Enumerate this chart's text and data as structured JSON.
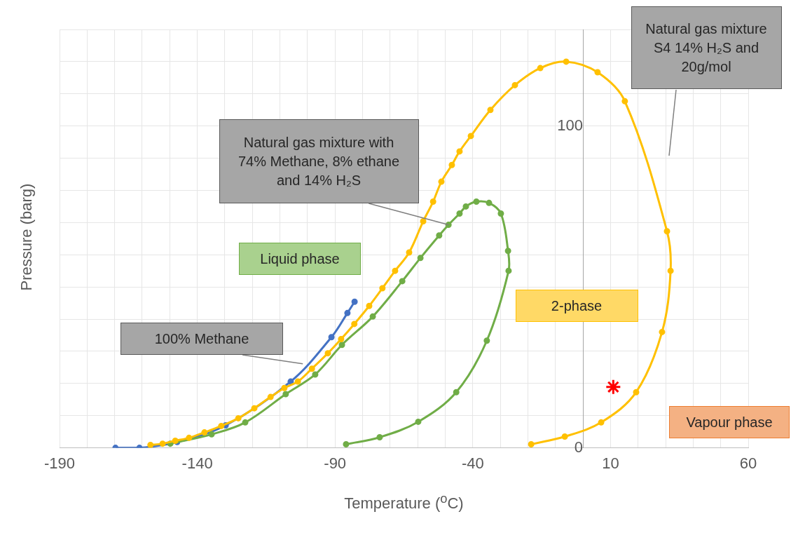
{
  "chart_data": {
    "type": "line",
    "xlabel": "Temperature ($^{o}$C)",
    "ylabel": "Pressure (barg)",
    "xlim": [
      -190,
      60
    ],
    "ylim": [
      0,
      130
    ],
    "xticks": [
      -190,
      {
        "value": -180,
        "label": null
      },
      {
        "value": -170,
        "label": null
      },
      {
        "value": -160,
        "label": null
      },
      {
        "value": -150,
        "label": null
      },
      -140,
      {
        "value": -130,
        "label": null
      },
      {
        "value": -120,
        "label": null
      },
      {
        "value": -110,
        "label": null
      },
      {
        "value": -100,
        "label": null
      },
      -90,
      {
        "value": -80,
        "label": null
      },
      {
        "value": -70,
        "label": null
      },
      {
        "value": -60,
        "label": null
      },
      {
        "value": -50,
        "label": null
      },
      -40,
      {
        "value": -30,
        "label": null
      },
      {
        "value": -20,
        "label": null
      },
      {
        "value": -10,
        "label": null
      },
      {
        "value": 0,
        "label": null
      },
      10,
      {
        "value": 20,
        "label": null
      },
      {
        "value": 30,
        "label": null
      },
      {
        "value": 40,
        "label": null
      },
      {
        "value": 50,
        "label": null
      },
      60
    ],
    "yticks": [
      0,
      {
        "value": 10,
        "label": null
      },
      {
        "value": 20,
        "label": null
      },
      {
        "value": 30,
        "label": null
      },
      {
        "value": 40,
        "label": null
      },
      {
        "value": 50,
        "label": null
      },
      {
        "value": 60,
        "label": null
      },
      {
        "value": 70,
        "label": null
      },
      {
        "value": 80,
        "label": null
      },
      {
        "value": 90,
        "label": null
      },
      100,
      {
        "value": 110,
        "label": null
      },
      {
        "value": 120,
        "label": null
      },
      {
        "value": 130,
        "label": null
      }
    ],
    "grid": true,
    "legend": false,
    "marker": "circle",
    "line_style": "solid",
    "series": [
      {
        "color": "#ffc000",
        "x": [
          -157,
          -152.6,
          -148,
          -143,
          -137.4,
          -131.3,
          -125.1,
          -119.3,
          -113.4,
          -108.4,
          -103.5,
          -98.4,
          -92.6,
          -87.8,
          -83,
          -77.6,
          -72.8,
          -68.2,
          -63.1,
          -58,
          -54.4,
          -51.4,
          -47.6,
          -44.8,
          -40.7,
          -33.6,
          -24.7,
          -15.5,
          -6.1,
          5.3,
          15.2,
          30.5,
          31.8,
          28.7,
          19.3,
          6.6,
          -6.6,
          -18.8
        ],
        "values": [
          0.9,
          1.3,
          2.2,
          3.1,
          4.8,
          6.8,
          9.2,
          12.3,
          15.8,
          18.6,
          20.6,
          24.6,
          29.4,
          33.8,
          38.5,
          44.1,
          49.6,
          55,
          60.7,
          70.4,
          76.5,
          82.7,
          87.9,
          92.1,
          96.9,
          105,
          112.7,
          118,
          120,
          116.7,
          107.7,
          67.3,
          55,
          36,
          17.3,
          7.9,
          3.5,
          1.1
        ]
      },
      {
        "color": "#70ad47",
        "x": [
          -149.8,
          -134.8,
          -122.6,
          -107.9,
          -97.2,
          -87.5,
          -76.3,
          -65.6,
          -59,
          -52.2,
          -48.8,
          -44.8,
          -42.5,
          -38.7,
          -34.1,
          -29.8,
          -27.2,
          -27,
          -34.9,
          -46,
          -59.8,
          -73.8,
          -86
        ],
        "values": [
          1.3,
          4.2,
          7.9,
          16.7,
          22.8,
          32,
          40.8,
          51.8,
          59,
          66,
          69.3,
          72.8,
          75,
          76.5,
          76.1,
          72.8,
          61.2,
          55,
          33.3,
          17.3,
          8.1,
          3.3,
          1.1
        ]
      },
      {
        "color": "#4472c4",
        "x": [
          -169.7,
          -161,
          -147.3,
          -129.7,
          -106.1,
          -91.3,
          -85.5,
          -82.9
        ],
        "values": [
          0,
          0,
          1.8,
          7,
          20.6,
          34.4,
          41.9,
          45.4
        ]
      },
      {
        "type": "scatter",
        "color": "#ff0000",
        "marker": "cross",
        "x": [
          11
        ],
        "values": [
          18.9
        ]
      }
    ],
    "annotations": [
      "Natural gas mixture S4 14% H₂S and 20g/mol",
      {
        "text": "Natural gas mixture with 74% Methane, 8% ethane and 14% H₂S",
        "x": -48.8,
        "y": 69.3
      },
      {
        "text": "100% Methane",
        "x": -101.7,
        "y": 26.1
      },
      "Liquid phase",
      "2-phase",
      "Vapour phase"
    ]
  }
}
